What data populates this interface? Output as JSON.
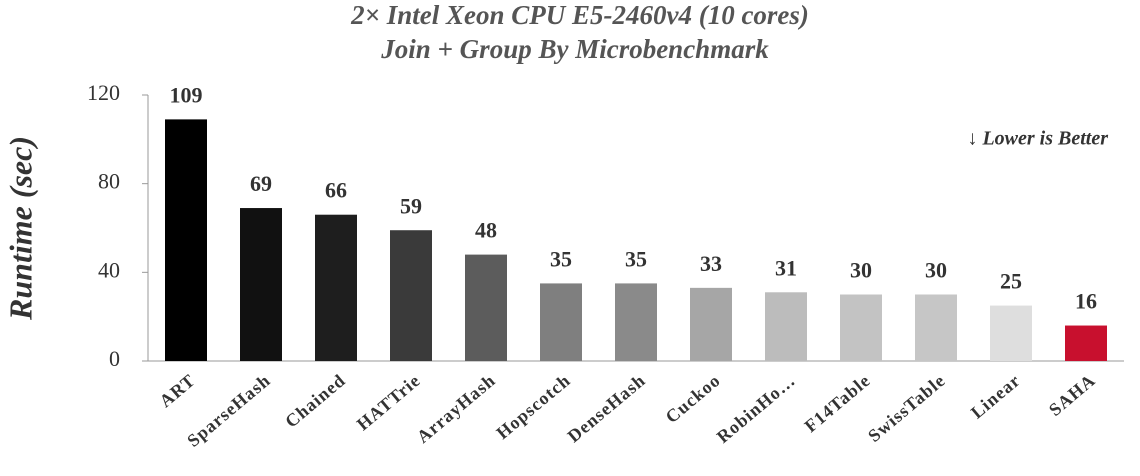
{
  "chart_data": {
    "type": "bar",
    "title": "2× Intel Xeon CPU E5-2460v4  (10 cores)",
    "subtitle": "Join + Group By Microbenchmark",
    "y_label": "Runtime (sec)",
    "annotation": "↓ Lower is Better",
    "categories": [
      "ART",
      "SparseHash",
      "Chained",
      "HATTrie",
      "ArrayHash",
      "Hopscotch",
      "DenseHash",
      "Cuckoo",
      "RobinHo…",
      "F14Table",
      "SwissTable",
      "Linear",
      "SAHA"
    ],
    "values": [
      109,
      69,
      66,
      59,
      48,
      35,
      35,
      33,
      31,
      30,
      30,
      25,
      16
    ],
    "colors": [
      "#000000",
      "#111111",
      "#1e1e1e",
      "#3a3a3a",
      "#5c5c5c",
      "#7f7f7f",
      "#8a8a8a",
      "#a6a6a6",
      "#bcbcbc",
      "#c3c3c3",
      "#c6c6c6",
      "#dedede",
      "#c8102e"
    ],
    "ylim": [
      0,
      120
    ],
    "yticks": [
      0,
      40,
      80,
      120
    ],
    "grid": false
  }
}
